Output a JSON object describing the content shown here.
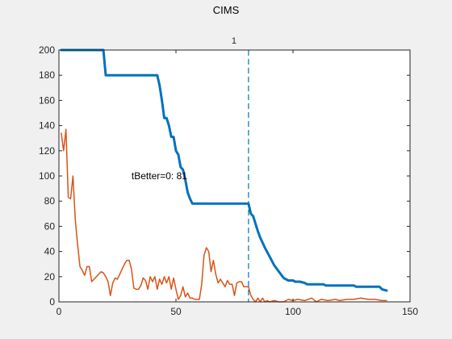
{
  "figure": {
    "title": "CIMS"
  },
  "chart_data": {
    "type": "line",
    "title": "CIMS",
    "xlabel": "",
    "ylabel": "",
    "xlim": [
      0,
      150
    ],
    "ylim": [
      0,
      200
    ],
    "xticks": [
      0,
      50,
      100,
      150
    ],
    "yticks": [
      0,
      20,
      40,
      60,
      80,
      100,
      120,
      140,
      160,
      180,
      200
    ],
    "grid": false,
    "series": [
      {
        "color": "#0072BD",
        "line_width": 3,
        "x": [
          1,
          19,
          20,
          42,
          43,
          44,
          45,
          46,
          47,
          48,
          49,
          50,
          51,
          52,
          53,
          54,
          55,
          56,
          57,
          58,
          81,
          82,
          83,
          84,
          85,
          86,
          88,
          90,
          92,
          94,
          96,
          98,
          100,
          101,
          103,
          105,
          106,
          113,
          114,
          126,
          127,
          137,
          138,
          140
        ],
        "y": [
          200,
          200,
          180,
          180,
          172,
          160,
          146,
          146,
          140,
          131,
          131,
          120,
          117,
          107,
          105,
          97,
          87,
          82,
          78,
          78,
          78,
          70,
          68,
          62,
          56,
          51,
          43,
          36,
          29,
          24,
          19,
          17,
          17,
          16,
          16,
          15,
          14,
          14,
          13,
          13,
          12,
          12,
          10,
          9
        ]
      },
      {
        "color": "#D95319",
        "line_width": 1.5,
        "x": [
          1,
          2,
          3,
          4,
          5,
          6,
          7,
          8,
          9,
          10,
          11,
          12,
          13,
          14,
          15,
          16,
          17,
          18,
          19,
          20,
          21,
          22,
          23,
          24,
          25,
          26,
          27,
          28,
          29,
          30,
          31,
          32,
          33,
          34,
          35,
          36,
          37,
          38,
          39,
          40,
          41,
          42,
          43,
          44,
          45,
          46,
          47,
          48,
          49,
          50,
          51,
          52,
          53,
          54,
          55,
          56,
          57,
          58,
          59,
          60,
          61,
          62,
          63,
          64,
          65,
          66,
          67,
          68,
          69,
          70,
          71,
          72,
          73,
          74,
          75,
          76,
          77,
          78,
          79,
          80,
          81,
          82,
          83,
          84,
          85,
          86,
          87,
          88,
          89,
          90,
          92,
          94,
          96,
          98,
          100,
          102,
          105,
          108,
          110,
          112,
          115,
          118,
          120,
          123,
          126,
          129,
          132,
          135,
          138,
          140
        ],
        "y": [
          134,
          120,
          137,
          83,
          82,
          100,
          65,
          45,
          28,
          25,
          21,
          28,
          28,
          16,
          18,
          20,
          22,
          24,
          23,
          20,
          16,
          5,
          15,
          19,
          18,
          22,
          26,
          30,
          33,
          33,
          26,
          11,
          10,
          10,
          13,
          19,
          17,
          10,
          20,
          16,
          20,
          10,
          18,
          14,
          20,
          15,
          20,
          10,
          19,
          10,
          2,
          5,
          12,
          4,
          7,
          3,
          3,
          2,
          2,
          2,
          14,
          37,
          43,
          40,
          24,
          33,
          22,
          15,
          18,
          15,
          12,
          17,
          14,
          14,
          5,
          15,
          16,
          16,
          12,
          12,
          12,
          5,
          2,
          0,
          3,
          0,
          3,
          0,
          1,
          0,
          1,
          0,
          0,
          2,
          1,
          2,
          1,
          3,
          0,
          2,
          1,
          2,
          1,
          2,
          2,
          3,
          2,
          2,
          1,
          1
        ]
      }
    ],
    "vline": {
      "x": 81,
      "label": "1",
      "color": "#0072BD"
    },
    "annotation": {
      "text": "tBetter=0: 81",
      "x": 31,
      "y": 100
    }
  }
}
